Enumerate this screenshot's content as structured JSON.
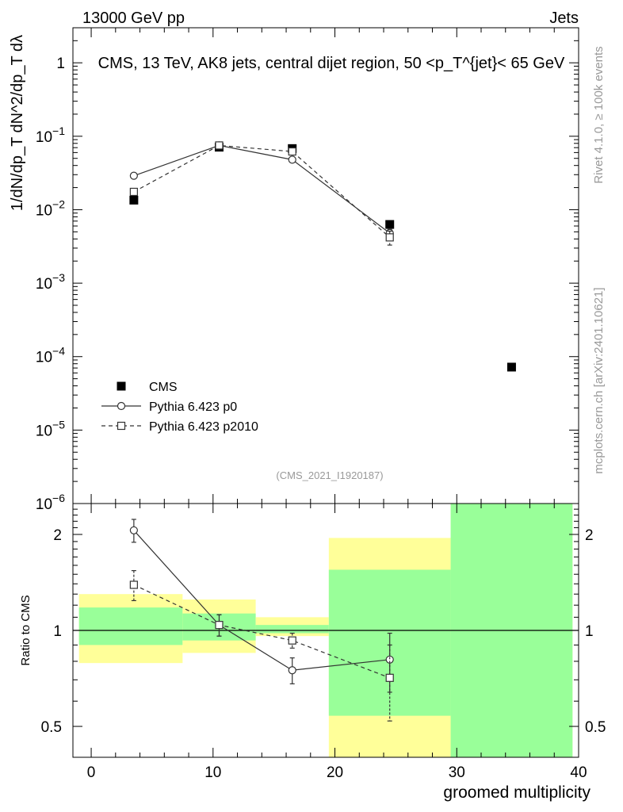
{
  "header": {
    "left": "13000 GeV pp",
    "right": "Jets"
  },
  "side_labels": {
    "top": "Rivet 4.1.0, ≥ 100k events",
    "bottom": "mcplots.cern.ch [arXiv:2401.10621]"
  },
  "chart_data": [
    {
      "type": "scatter",
      "title": "CMS, 13 TeV, AK8 jets, central dijet region, 50 <p_T^{jet}< 65 GeV",
      "ylabel": "1/dN/dp_T  dN^2/dp_T dλ",
      "yscale": "log",
      "ylim": [
        1e-06,
        3
      ],
      "xlim": [
        -1.5,
        40
      ],
      "y_ticks": [
        {
          "value": 1e-06,
          "base": "10",
          "exp": "−6"
        },
        {
          "value": 1e-05,
          "base": "10",
          "exp": "−5"
        },
        {
          "value": 0.0001,
          "base": "10",
          "exp": "−4"
        },
        {
          "value": 0.001,
          "base": "10",
          "exp": "−3"
        },
        {
          "value": 0.01,
          "base": "10",
          "exp": "−2"
        },
        {
          "value": 0.1,
          "base": "10",
          "exp": "−1"
        },
        {
          "value": 1,
          "base": "1",
          "exp": ""
        }
      ],
      "watermark": "(CMS_2021_I1920187)",
      "legend_position": "lower-left",
      "series": [
        {
          "name": "CMS",
          "style": "filled-square",
          "x": [
            3.5,
            10.5,
            16.5,
            24.5,
            34.5
          ],
          "y": [
            0.0135,
            0.071,
            0.068,
            0.0063,
            7.2e-05
          ]
        },
        {
          "name": "Pythia 6.423 p0",
          "style": "open-circle-solid",
          "x": [
            3.5,
            10.5,
            16.5,
            24.5
          ],
          "y": [
            0.029,
            0.075,
            0.048,
            0.0048
          ],
          "yerr_lo": [
            0.0,
            0.0,
            0.0,
            0.0006
          ],
          "yerr_hi": [
            0.0,
            0.0,
            0.0,
            0.0006
          ]
        },
        {
          "name": "Pythia 6.423 p2010",
          "style": "open-square-dashed",
          "x": [
            3.5,
            10.5,
            16.5,
            24.5
          ],
          "y": [
            0.0175,
            0.075,
            0.062,
            0.0042
          ],
          "yerr_lo": [
            0.0,
            0.0,
            0.0,
            0.0009
          ],
          "yerr_hi": [
            0.0,
            0.0,
            0.0,
            0.0009
          ]
        }
      ]
    },
    {
      "type": "scatter",
      "ylabel": "Ratio to CMS",
      "xlabel": "groomed multiplicity",
      "yscale": "log",
      "ylim": [
        0.4,
        2.5
      ],
      "xlim": [
        -1.5,
        40
      ],
      "x_ticks": [
        0,
        10,
        20,
        30,
        40
      ],
      "y_ticks": [
        0.5,
        1,
        2
      ],
      "y_tick_labels": [
        "0.5",
        "1",
        "2"
      ],
      "bands": [
        {
          "x0": -1,
          "x1": 7.5,
          "yellow": [
            0.79,
            1.3
          ],
          "green": [
            0.9,
            1.18
          ]
        },
        {
          "x0": 7.5,
          "x1": 13.5,
          "yellow": [
            0.85,
            1.25
          ],
          "green": [
            0.93,
            1.13
          ]
        },
        {
          "x0": 13.5,
          "x1": 19.5,
          "yellow": [
            0.96,
            1.1
          ],
          "green": [
            0.98,
            1.04
          ]
        },
        {
          "x0": 19.5,
          "x1": 29.5,
          "yellow": [
            0.4,
            1.95
          ],
          "green": [
            0.54,
            1.55
          ]
        },
        {
          "x0": 29.5,
          "x1": 39.5,
          "yellow": [
            0.4,
            2.5
          ],
          "green": [
            0.4,
            2.5
          ]
        }
      ],
      "series": [
        {
          "name": "Pythia 6.423 p0",
          "style": "open-circle-solid",
          "x": [
            3.5,
            10.5,
            16.5,
            24.5
          ],
          "y": [
            2.06,
            1.04,
            0.75,
            0.81
          ],
          "yerr_lo": [
            0.17,
            0.08,
            0.07,
            0.17
          ],
          "yerr_hi": [
            0.17,
            0.08,
            0.07,
            0.17
          ]
        },
        {
          "name": "Pythia 6.423 p2010",
          "style": "open-square-dashed",
          "x": [
            3.5,
            10.5,
            16.5,
            24.5
          ],
          "y": [
            1.39,
            1.04,
            0.93,
            0.71
          ],
          "yerr_lo": [
            0.15,
            0.08,
            0.05,
            0.19
          ],
          "yerr_hi": [
            0.15,
            0.08,
            0.05,
            0.19
          ]
        }
      ]
    }
  ]
}
